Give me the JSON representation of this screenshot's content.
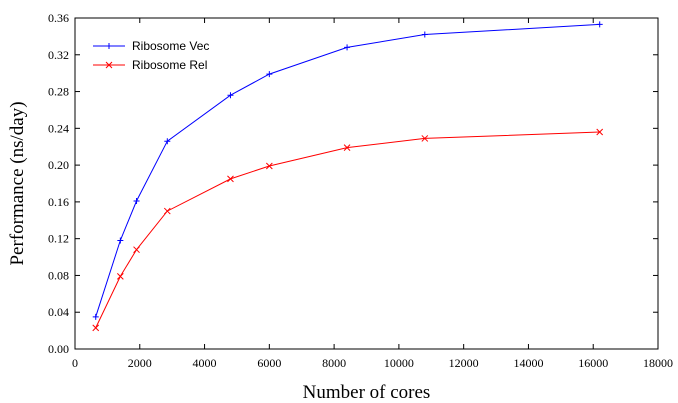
{
  "chart_data": {
    "type": "line",
    "xlabel": "Number of cores",
    "ylabel": "Performance (ns/day)",
    "xlim": [
      0,
      18000
    ],
    "ylim": [
      0,
      0.36
    ],
    "xticks": [
      0,
      2000,
      4000,
      6000,
      8000,
      10000,
      12000,
      14000,
      16000,
      18000
    ],
    "xtick_labels": [
      "0",
      "2000",
      "4000",
      "6000",
      "8000",
      "10000",
      "12000",
      "14000",
      "16000",
      "18000"
    ],
    "yticks": [
      0,
      0.04,
      0.08,
      0.12,
      0.16,
      0.2,
      0.24,
      0.28,
      0.32,
      0.36
    ],
    "ytick_labels": [
      "0.00",
      "0.04",
      "0.08",
      "0.12",
      "0.16",
      "0.20",
      "0.24",
      "0.28",
      "0.32",
      "0.36"
    ],
    "grid": false,
    "legend_position": "top-left",
    "series": [
      {
        "name": "Ribosome Vec",
        "color": "#0000ff",
        "marker": "plus",
        "x": [
          640,
          1400,
          1900,
          2850,
          4800,
          6000,
          8400,
          10800,
          16200
        ],
        "y": [
          0.035,
          0.118,
          0.161,
          0.226,
          0.276,
          0.299,
          0.328,
          0.342,
          0.353
        ]
      },
      {
        "name": "Ribosome Rel",
        "color": "#ff0000",
        "marker": "cross",
        "x": [
          640,
          1400,
          1900,
          2850,
          4800,
          6000,
          8400,
          10800,
          16200
        ],
        "y": [
          0.023,
          0.079,
          0.108,
          0.15,
          0.185,
          0.199,
          0.219,
          0.229,
          0.236
        ]
      }
    ]
  }
}
